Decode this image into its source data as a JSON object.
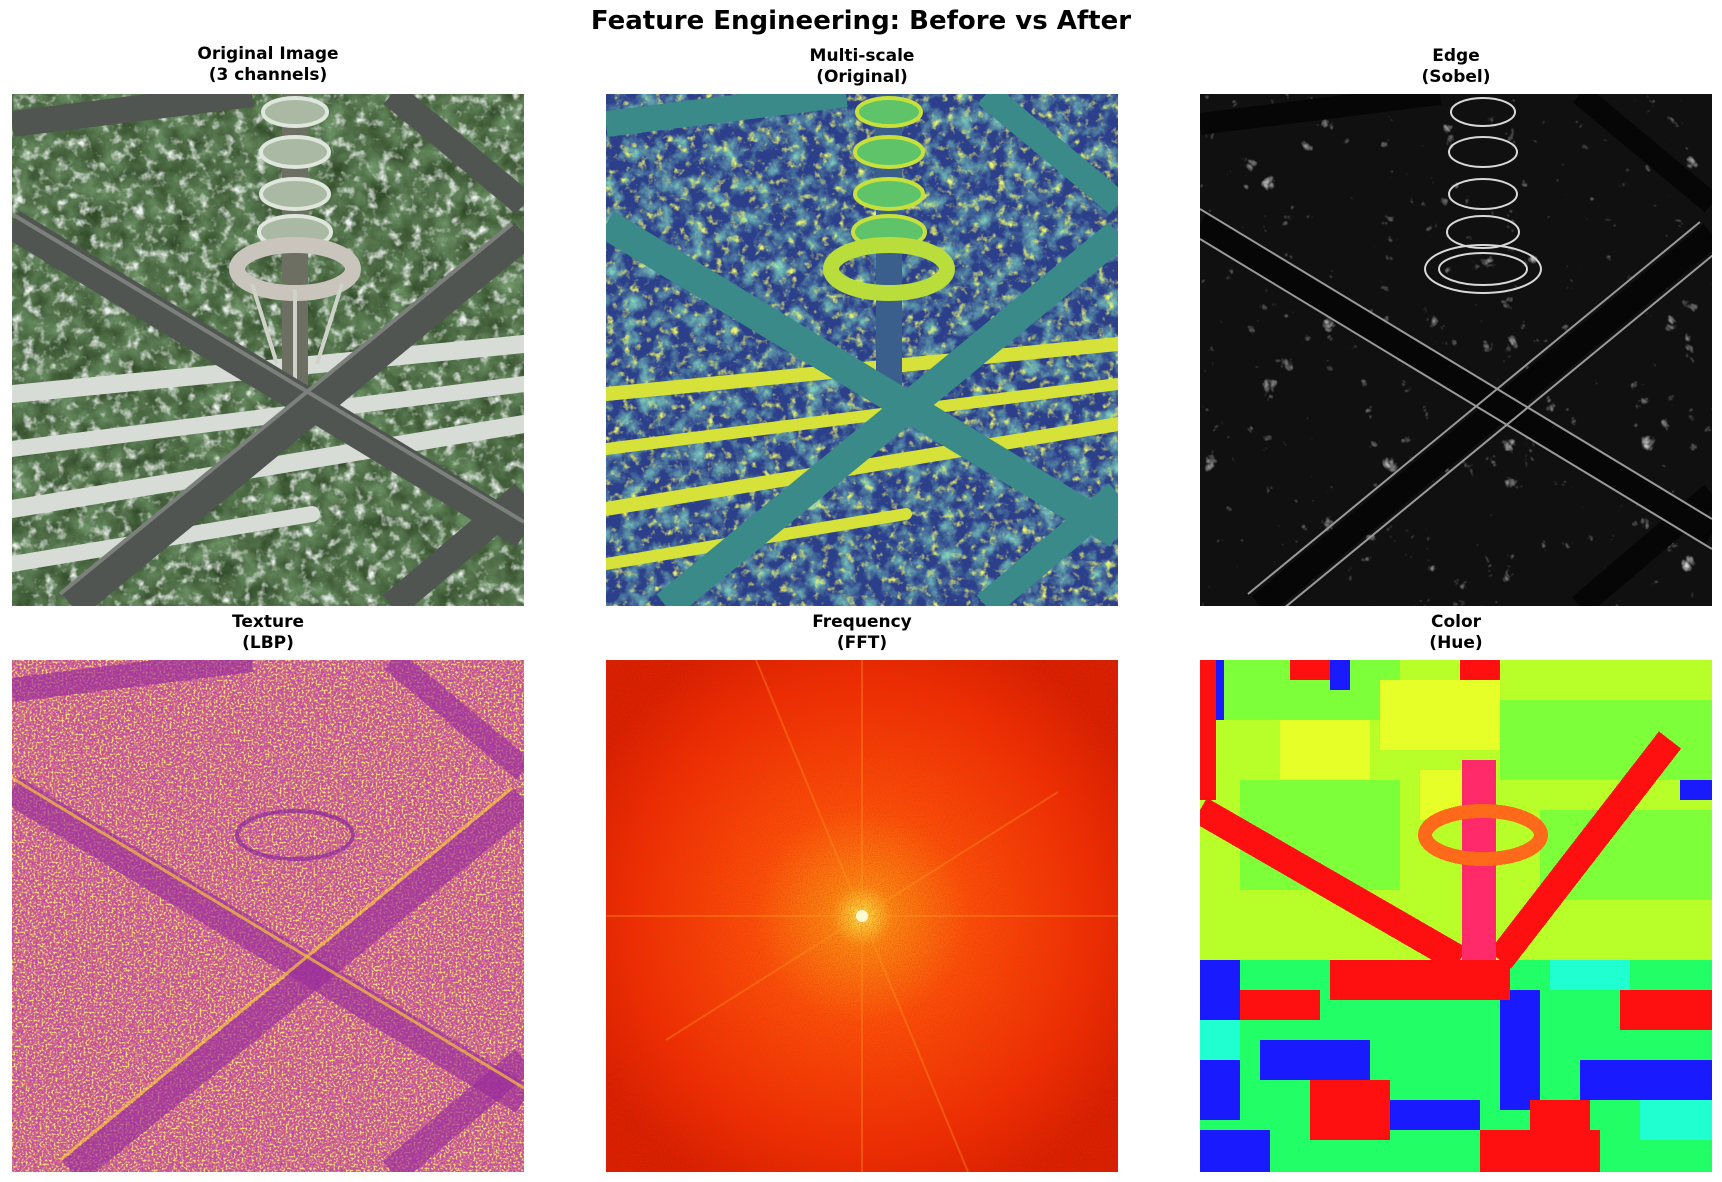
{
  "figure": {
    "title": "Feature Engineering: Before vs After"
  },
  "panels": [
    {
      "line1": "Original Image",
      "line2": "(3 channels)",
      "colormap": "rgb"
    },
    {
      "line1": "Multi-scale",
      "line2": "(Original)",
      "colormap": "viridis"
    },
    {
      "line1": "Edge",
      "line2": "(Sobel)",
      "colormap": "gray"
    },
    {
      "line1": "Texture",
      "line2": "(LBP)",
      "colormap": "plasma"
    },
    {
      "line1": "Frequency",
      "line2": "(FFT)",
      "colormap": "hot"
    },
    {
      "line1": "Color",
      "line2": "(Hue)",
      "colormap": "hsv"
    }
  ]
}
